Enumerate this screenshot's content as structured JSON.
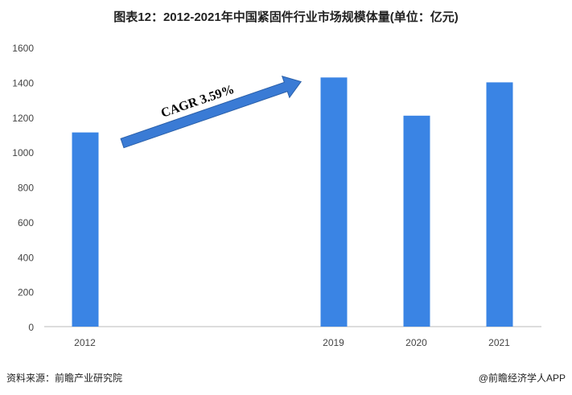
{
  "chart_data": {
    "type": "bar",
    "title": "图表12：2012-2021年中国紧固件行业市场规模体量(单位：亿元)",
    "categories": [
      "2012",
      "",
      "",
      "2019",
      "2020",
      "2021"
    ],
    "values": [
      1113,
      null,
      null,
      1428,
      1209,
      1400
    ],
    "ylim": [
      0,
      1600
    ],
    "yticks": [
      0,
      200,
      400,
      600,
      800,
      1000,
      1200,
      1400,
      1600
    ],
    "grid": false,
    "bar_color": "#3a84e4",
    "annotation": "CAGR 3.59%"
  },
  "footer": {
    "source": "资料来源：前瞻产业研究院",
    "brand": "@前瞻经济学人APP"
  }
}
